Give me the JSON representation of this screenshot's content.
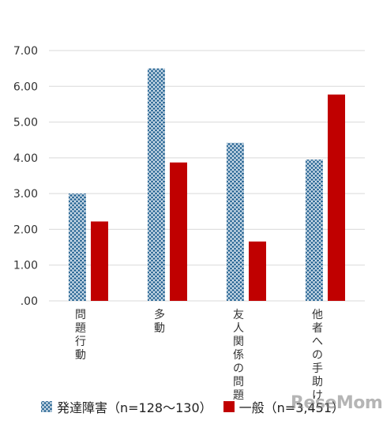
{
  "chart_data": {
    "type": "bar",
    "categories": [
      "問題行動",
      "多動",
      "友人関係の問題",
      "他者への手助け"
    ],
    "series": [
      {
        "name": "発達障害（n=128〜130）",
        "values": [
          3.0,
          6.5,
          4.42,
          3.95
        ],
        "color": "#1f5f8f",
        "pattern": "crosshatch"
      },
      {
        "name": "一般（n=3,451）",
        "values": [
          2.22,
          3.87,
          1.66,
          5.77
        ],
        "color": "#c00000",
        "pattern": "solid"
      }
    ],
    "ylim": [
      0,
      7
    ],
    "yticks": [
      ".00",
      "1.00",
      "2.00",
      "3.00",
      "4.00",
      "5.00",
      "6.00",
      "7.00"
    ],
    "grid": true,
    "legend_position": "bottom"
  },
  "legend": {
    "series1_label": "発達障害（n=128〜130）",
    "series2_label": "一般（n=3,451）"
  },
  "watermark": "ReseMom"
}
